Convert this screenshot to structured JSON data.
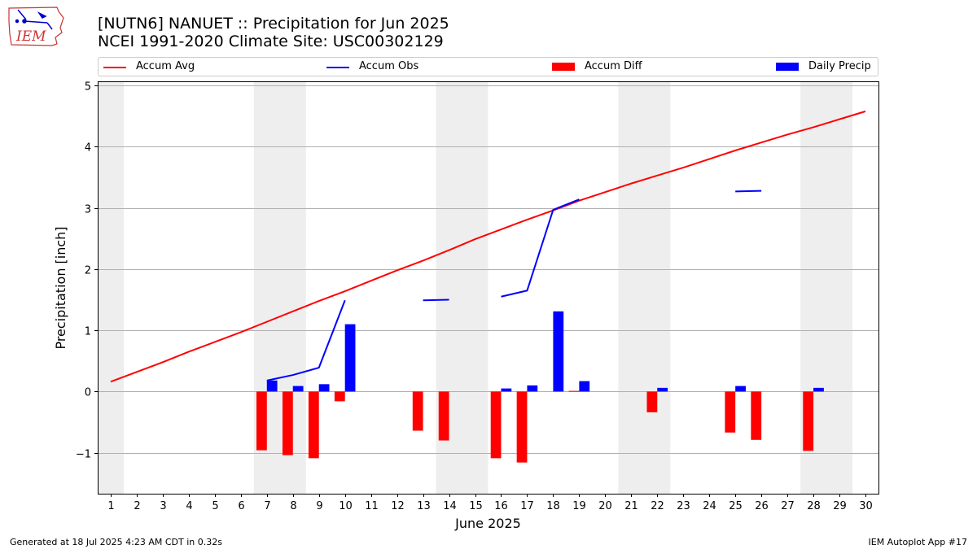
{
  "title_line1": "[NUTN6] NANUET :: Precipitation for Jun 2025",
  "title_line2": "NCEI 1991-2020 Climate Site: USC00302129",
  "logo_text": "IEM",
  "footer_left": "Generated at 18 Jul 2025 4:23 AM CDT in 0.32s",
  "footer_right": "IEM Autoplot App #17",
  "colors": {
    "avg": "#ff0000",
    "obs": "#0000ff",
    "diff": "#ff0000",
    "daily": "#0000ff",
    "weekend": "#eeeeee",
    "grid": "#b0b0b0"
  },
  "legend": [
    {
      "label": "Accum Avg",
      "kind": "line",
      "color": "#ff0000"
    },
    {
      "label": "Accum Obs",
      "kind": "line",
      "color": "#0000ff"
    },
    {
      "label": "Accum Diff",
      "kind": "box",
      "color": "#ff0000"
    },
    {
      "label": "Daily Precip",
      "kind": "box",
      "color": "#0000ff"
    }
  ],
  "chart_data": {
    "type": "bar",
    "xlabel": "June 2025",
    "ylabel": "Precipitation [inch]",
    "xlim": [
      0.5,
      30.5
    ],
    "ylim": [
      -1.67,
      5.07
    ],
    "x_ticks": [
      "1",
      "2",
      "3",
      "4",
      "5",
      "6",
      "7",
      "8",
      "9",
      "10",
      "11",
      "12",
      "13",
      "14",
      "15",
      "16",
      "17",
      "18",
      "19",
      "20",
      "21",
      "22",
      "23",
      "24",
      "25",
      "26",
      "27",
      "28",
      "29",
      "30"
    ],
    "y_ticks": [
      -1,
      0,
      1,
      2,
      3,
      4,
      5
    ],
    "y_tick_labels": [
      "−1",
      "0",
      "1",
      "2",
      "3",
      "4",
      "5"
    ],
    "grid": "y",
    "shaded_weekends": [
      [
        0.5,
        1.5
      ],
      [
        6.5,
        8.5
      ],
      [
        13.5,
        15.5
      ],
      [
        20.5,
        22.5
      ],
      [
        27.5,
        29.5
      ]
    ],
    "days": [
      1,
      2,
      3,
      4,
      5,
      6,
      7,
      8,
      9,
      10,
      11,
      12,
      13,
      14,
      15,
      16,
      17,
      18,
      19,
      20,
      21,
      22,
      23,
      24,
      25,
      26,
      27,
      28,
      29,
      30
    ],
    "series": [
      {
        "name": "Accum Avg",
        "kind": "line",
        "values": [
          0.16,
          0.32,
          0.48,
          0.65,
          0.81,
          0.97,
          1.14,
          1.31,
          1.48,
          1.64,
          1.81,
          1.98,
          2.14,
          2.31,
          2.49,
          2.65,
          2.81,
          2.96,
          3.12,
          3.26,
          3.4,
          3.53,
          3.66,
          3.8,
          3.94,
          4.07,
          4.2,
          4.32,
          4.45,
          4.58
        ]
      },
      {
        "name": "Accum Obs",
        "kind": "line",
        "segments": [
          [
            [
              7,
              0.18
            ],
            [
              8,
              0.27
            ],
            [
              9,
              0.39
            ],
            [
              10,
              1.49
            ]
          ],
          [
            [
              13,
              1.49
            ],
            [
              14,
              1.5
            ]
          ],
          [
            [
              16,
              1.55
            ],
            [
              17,
              1.65
            ],
            [
              18,
              2.97
            ],
            [
              19,
              3.14
            ]
          ],
          [
            [
              25,
              3.27
            ],
            [
              26,
              3.28
            ]
          ]
        ]
      },
      {
        "name": "Accum Diff",
        "kind": "bar",
        "offset": -0.2,
        "values": [
          0,
          0,
          0,
          0,
          0,
          0,
          -0.96,
          -1.04,
          -1.09,
          -0.16,
          0,
          0,
          -0.64,
          -0.8,
          0,
          -1.09,
          -1.16,
          0,
          0.01,
          0,
          0,
          -0.34,
          0,
          0,
          -0.67,
          -0.79,
          0,
          -0.97,
          0,
          0
        ]
      },
      {
        "name": "Daily Precip",
        "kind": "bar",
        "offset": 0.2,
        "values": [
          0,
          0,
          0,
          0,
          0,
          0,
          0.18,
          0.09,
          0.12,
          1.1,
          0,
          0,
          0,
          0,
          0,
          0.05,
          0.1,
          1.31,
          0.17,
          0,
          0,
          0.06,
          0,
          0,
          0.09,
          0,
          0,
          0.06,
          0,
          0
        ]
      }
    ]
  }
}
